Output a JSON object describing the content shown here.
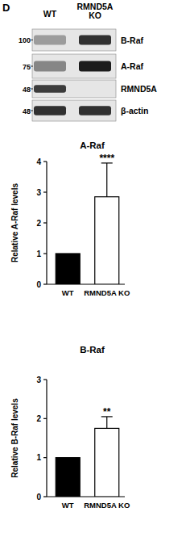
{
  "panel_label": "D",
  "blot": {
    "lanes": [
      "WT",
      "RMND5A KO"
    ],
    "bands": [
      {
        "label": "B-Raf",
        "marker": 100
      },
      {
        "label": "A-Raf",
        "marker": 75
      },
      {
        "label": "RMND5A",
        "marker": 48
      },
      {
        "label": "β-actin",
        "marker": 48
      }
    ]
  },
  "chart_data": [
    {
      "type": "bar",
      "title": "A-Raf",
      "y_label": "Relative A-Raf levels",
      "categories": [
        "WT",
        "RMND5A KO"
      ],
      "values": [
        1,
        2.85
      ],
      "errors": [
        null,
        1.1
      ],
      "colors": [
        "#000000",
        "#ffffff"
      ],
      "ylim": [
        0,
        4
      ],
      "yticks": [
        0,
        1,
        2,
        3,
        4
      ],
      "grid": false,
      "annotation": "****"
    },
    {
      "type": "bar",
      "title": "B-Raf",
      "y_label": "Relative B-Raf levels",
      "categories": [
        "WT",
        "RMND5A KO"
      ],
      "values": [
        1,
        1.75
      ],
      "errors": [
        null,
        0.3
      ],
      "colors": [
        "#000000",
        "#ffffff"
      ],
      "ylim": [
        0,
        3
      ],
      "yticks": [
        0,
        1,
        2,
        3
      ],
      "grid": false,
      "annotation": "**"
    }
  ]
}
